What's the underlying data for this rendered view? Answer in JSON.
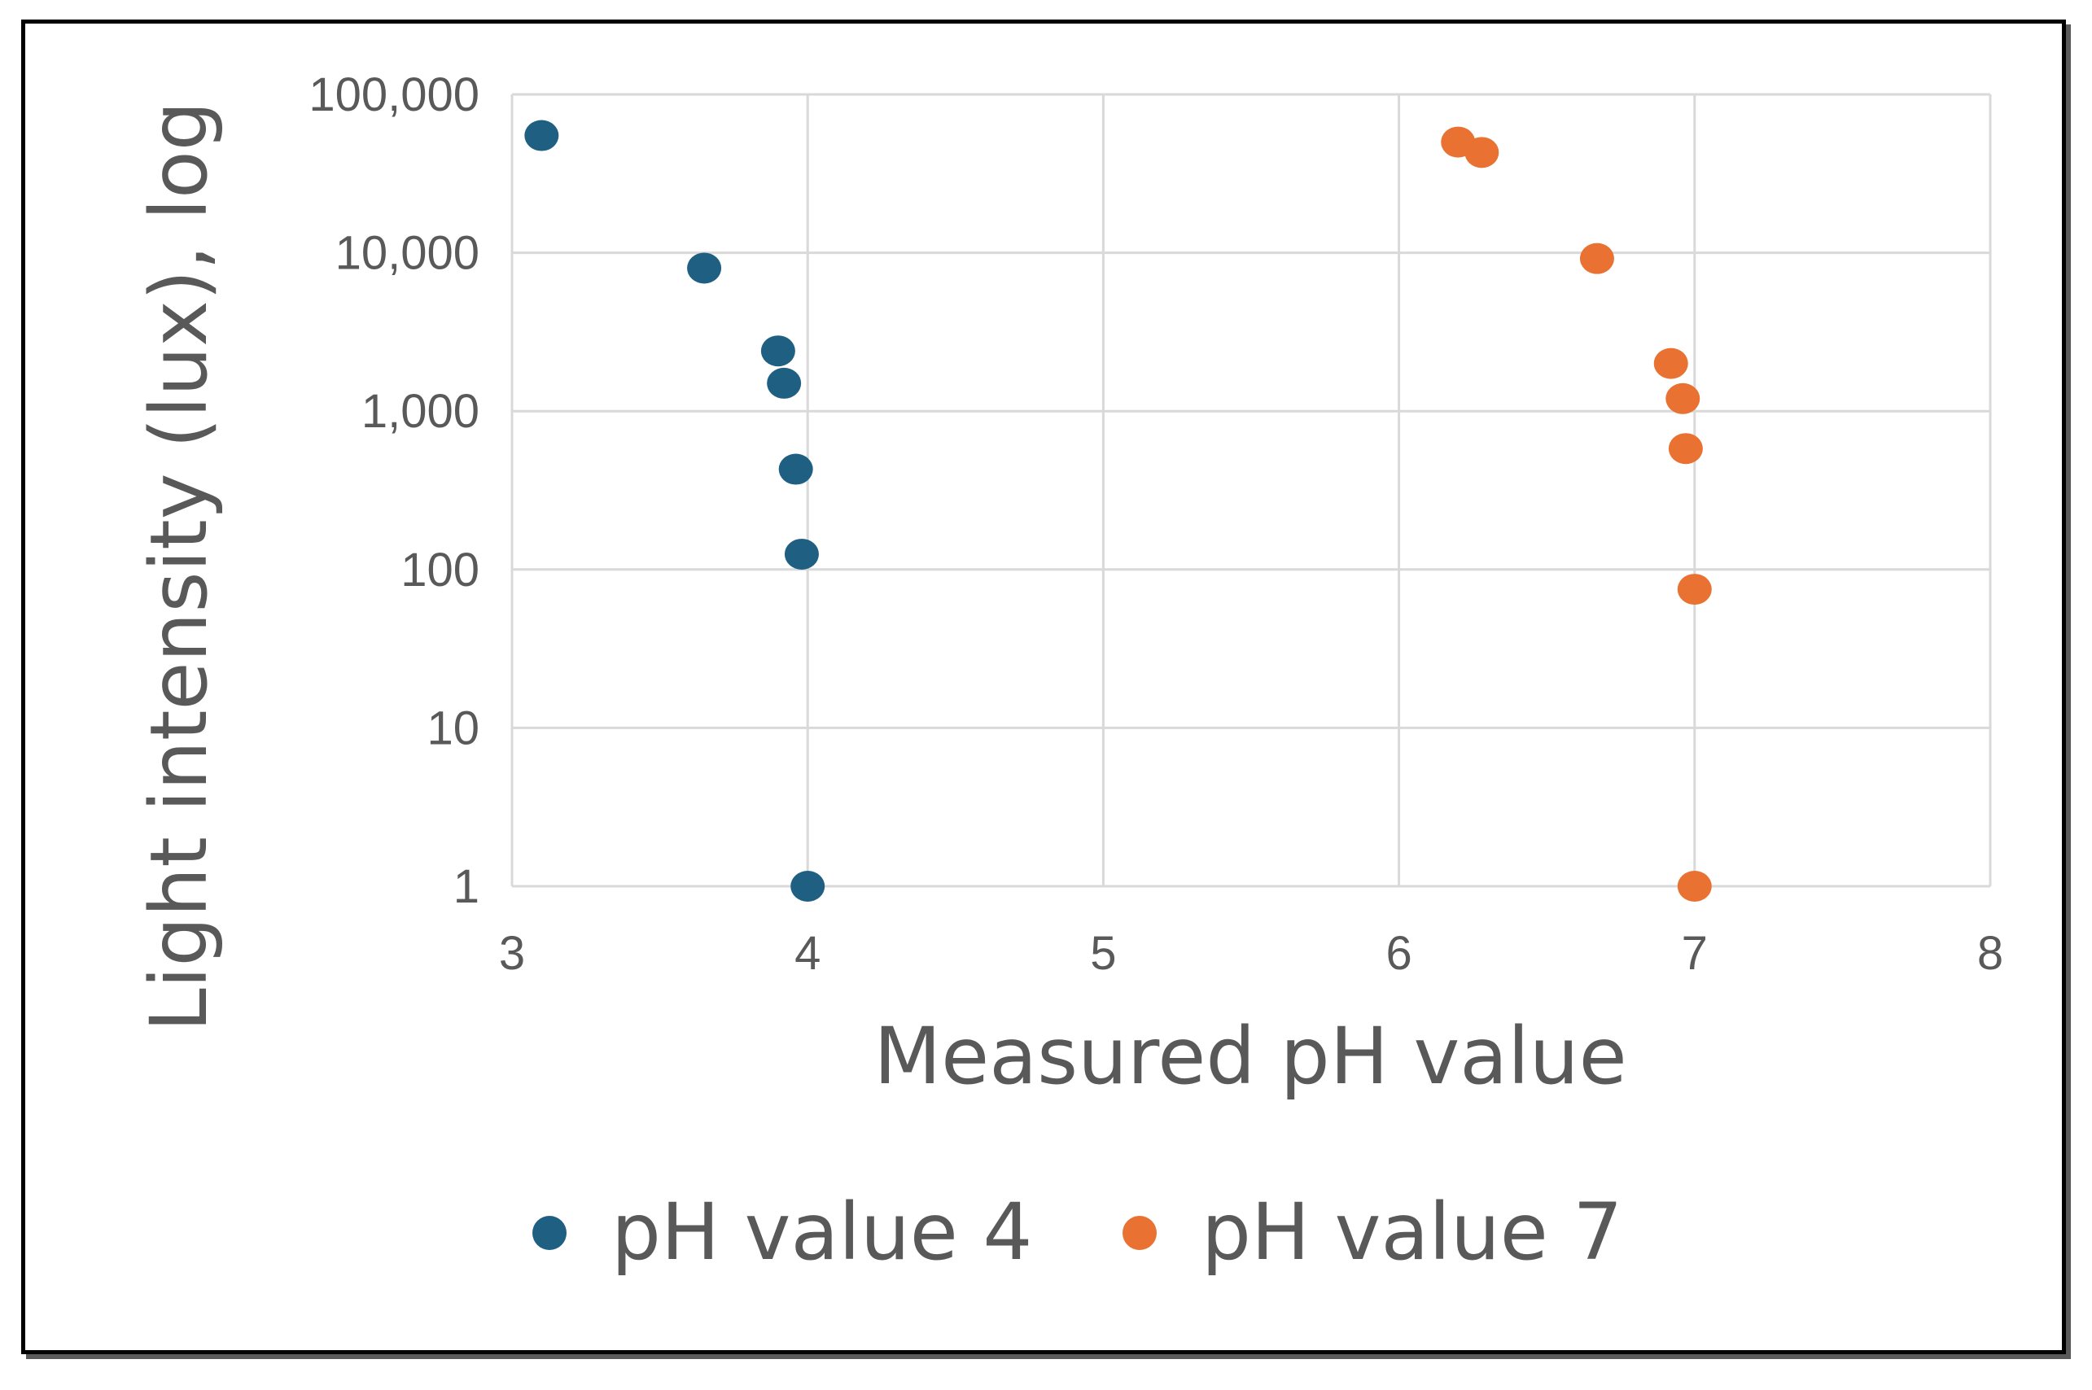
{
  "chart_data": {
    "type": "scatter",
    "title": "",
    "xlabel": "Measured pH value",
    "ylabel": "Light intensity (lux), log",
    "xlim": [
      3,
      8
    ],
    "ylim": [
      1,
      100000
    ],
    "yscale": "log",
    "grid": true,
    "legend_position": "bottom",
    "x_ticks": [
      3,
      4,
      5,
      6,
      7,
      8
    ],
    "x_tick_labels": [
      "3",
      "4",
      "5",
      "6",
      "7",
      "8"
    ],
    "y_ticks": [
      1,
      10,
      100,
      1000,
      10000,
      100000
    ],
    "y_tick_labels": [
      "1",
      "10",
      "100",
      "1,000",
      "10,000",
      "100,000"
    ],
    "series": [
      {
        "name": "pH value 4",
        "color": "#1f5f82",
        "points": [
          {
            "x": 3.1,
            "y": 55000
          },
          {
            "x": 3.65,
            "y": 8000
          },
          {
            "x": 3.9,
            "y": 2400
          },
          {
            "x": 3.92,
            "y": 1500
          },
          {
            "x": 3.96,
            "y": 430
          },
          {
            "x": 3.98,
            "y": 125
          },
          {
            "x": 4.0,
            "y": 1
          }
        ]
      },
      {
        "name": "pH value 7",
        "color": "#e97132",
        "points": [
          {
            "x": 6.2,
            "y": 50000
          },
          {
            "x": 6.28,
            "y": 43000
          },
          {
            "x": 6.67,
            "y": 9200
          },
          {
            "x": 6.92,
            "y": 2000
          },
          {
            "x": 6.96,
            "y": 1200
          },
          {
            "x": 6.97,
            "y": 580
          },
          {
            "x": 7.0,
            "y": 75
          },
          {
            "x": 7.0,
            "y": 1
          }
        ]
      }
    ]
  }
}
